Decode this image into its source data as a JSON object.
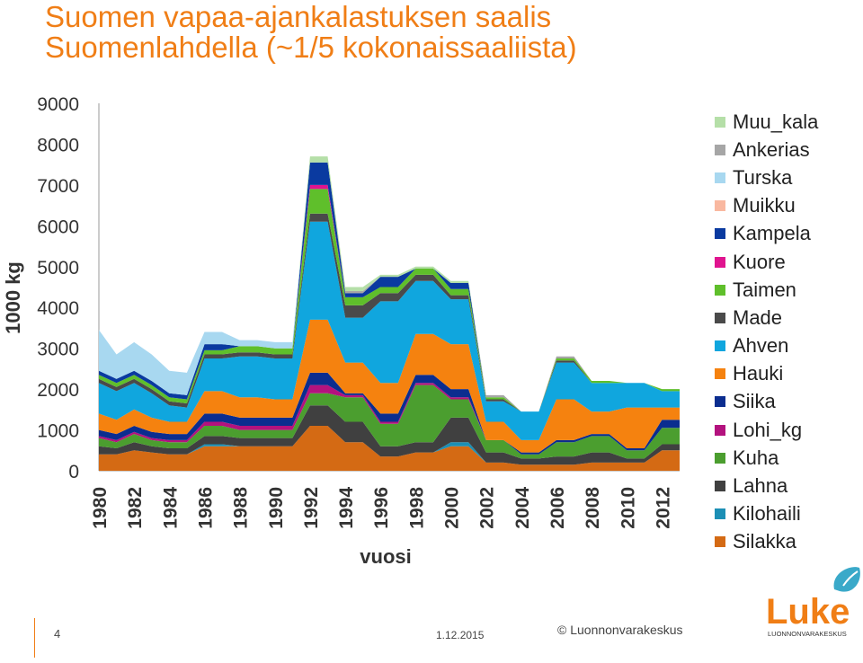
{
  "title": {
    "line1": "Suomen vapaa-ajankalastuksen saalis",
    "line2": "Suomenlahdella (~1/5 kokonaissaaliista)"
  },
  "footer": {
    "page_number": "4",
    "date": "1.12.2015",
    "copyright": "© Luonnonvarakeskus",
    "logo_text": "Luke",
    "logo_subtext": "LUONNONVARAKESKUS"
  },
  "chart_data": {
    "type": "area",
    "stacked": true,
    "title": "",
    "xlabel": "vuosi",
    "ylabel": "1000 kg",
    "ylim": [
      0,
      9000
    ],
    "yticks": [
      0,
      1000,
      2000,
      3000,
      4000,
      5000,
      6000,
      7000,
      8000,
      9000
    ],
    "xticks": [
      "1980",
      "1982",
      "1984",
      "1986",
      "1988",
      "1990",
      "1992",
      "1994",
      "1996",
      "1998",
      "2000",
      "2002",
      "2004",
      "2006",
      "2008",
      "2010",
      "2012"
    ],
    "grid": false,
    "legend_position": "right",
    "x": [
      1980,
      1981,
      1982,
      1983,
      1984,
      1985,
      1986,
      1987,
      1988,
      1989,
      1990,
      1991,
      1992,
      1993,
      1994,
      1995,
      1996,
      1997,
      1998,
      1999,
      2000,
      2001,
      2002,
      2003,
      2004,
      2005,
      2006,
      2007,
      2008,
      2009,
      2010,
      2011,
      2012,
      2013
    ],
    "series": [
      {
        "name": "Silakka",
        "color": "#d46a14",
        "values": [
          400,
          400,
          500,
          450,
          400,
          400,
          600,
          600,
          600,
          600,
          600,
          600,
          1100,
          1100,
          700,
          700,
          350,
          350,
          450,
          450,
          600,
          600,
          200,
          200,
          150,
          150,
          150,
          150,
          200,
          200,
          200,
          200,
          500,
          500
        ]
      },
      {
        "name": "Kilohaili",
        "color": "#1c8fb5",
        "values": [
          0,
          0,
          0,
          0,
          0,
          0,
          50,
          50,
          0,
          0,
          0,
          0,
          0,
          0,
          0,
          0,
          0,
          0,
          0,
          0,
          100,
          100,
          0,
          0,
          0,
          0,
          0,
          0,
          0,
          0,
          0,
          0,
          0,
          0
        ]
      },
      {
        "name": "Lahna",
        "color": "#404040",
        "values": [
          200,
          150,
          200,
          150,
          150,
          150,
          200,
          200,
          200,
          200,
          200,
          200,
          500,
          500,
          500,
          500,
          250,
          250,
          250,
          250,
          600,
          600,
          250,
          250,
          150,
          150,
          200,
          200,
          250,
          250,
          100,
          100,
          150,
          150
        ]
      },
      {
        "name": "Kuha",
        "color": "#4b9e2f",
        "values": [
          200,
          150,
          200,
          150,
          150,
          150,
          250,
          250,
          200,
          200,
          200,
          200,
          300,
          300,
          600,
          600,
          550,
          550,
          1400,
          1400,
          450,
          450,
          300,
          300,
          100,
          100,
          350,
          350,
          400,
          400,
          200,
          200,
          400,
          400
        ]
      },
      {
        "name": "Lohi_kg",
        "color": "#b3127e",
        "values": [
          50,
          50,
          50,
          50,
          50,
          50,
          100,
          100,
          100,
          100,
          100,
          100,
          200,
          200,
          50,
          50,
          50,
          50,
          50,
          50,
          50,
          50,
          0,
          0,
          0,
          0,
          0,
          0,
          0,
          0,
          0,
          0,
          0,
          0
        ]
      },
      {
        "name": "Siika",
        "color": "#0b2d8f",
        "values": [
          150,
          150,
          150,
          150,
          150,
          150,
          200,
          200,
          200,
          200,
          200,
          200,
          300,
          300,
          50,
          50,
          200,
          200,
          200,
          200,
          200,
          200,
          0,
          0,
          50,
          50,
          50,
          50,
          50,
          50,
          50,
          50,
          200,
          200
        ]
      },
      {
        "name": "Hauki",
        "color": "#f5820f",
        "values": [
          400,
          350,
          400,
          350,
          300,
          300,
          550,
          550,
          500,
          500,
          450,
          450,
          1300,
          1300,
          750,
          750,
          750,
          750,
          1000,
          1000,
          1100,
          1100,
          450,
          450,
          300,
          300,
          1000,
          1000,
          550,
          550,
          1000,
          1000,
          300,
          300
        ]
      },
      {
        "name": "Ahven",
        "color": "#10a6de",
        "values": [
          750,
          700,
          650,
          600,
          400,
          350,
          800,
          800,
          1000,
          1000,
          1000,
          1000,
          2400,
          2400,
          1100,
          1100,
          2000,
          2000,
          1300,
          1300,
          1100,
          1100,
          500,
          500,
          700,
          700,
          900,
          900,
          700,
          700,
          600,
          600,
          400,
          400
        ]
      },
      {
        "name": "Made",
        "color": "#4a4a4a",
        "values": [
          100,
          100,
          100,
          100,
          100,
          100,
          100,
          100,
          100,
          100,
          100,
          100,
          200,
          200,
          300,
          300,
          200,
          200,
          150,
          150,
          100,
          100,
          50,
          50,
          0,
          0,
          50,
          50,
          0,
          0,
          0,
          0,
          0,
          0
        ]
      },
      {
        "name": "Taimen",
        "color": "#5fbf2b",
        "values": [
          100,
          100,
          100,
          100,
          100,
          100,
          100,
          100,
          150,
          150,
          150,
          150,
          600,
          600,
          200,
          200,
          150,
          150,
          150,
          150,
          150,
          150,
          50,
          50,
          0,
          0,
          50,
          50,
          50,
          50,
          0,
          0,
          50,
          50
        ]
      },
      {
        "name": "Kuore",
        "color": "#e0148f",
        "values": [
          0,
          0,
          0,
          0,
          0,
          0,
          0,
          0,
          0,
          0,
          0,
          0,
          100,
          100,
          0,
          0,
          0,
          0,
          0,
          0,
          0,
          0,
          0,
          0,
          0,
          0,
          0,
          0,
          0,
          0,
          0,
          0,
          0,
          0
        ]
      },
      {
        "name": "Kampela",
        "color": "#0a3aa0",
        "values": [
          100,
          100,
          100,
          100,
          100,
          100,
          150,
          150,
          0,
          0,
          0,
          0,
          550,
          550,
          100,
          100,
          250,
          250,
          0,
          0,
          150,
          150,
          0,
          0,
          0,
          0,
          0,
          0,
          0,
          0,
          0,
          0,
          0,
          0
        ]
      },
      {
        "name": "Muikku",
        "color": "#f9b8a0",
        "values": [
          0,
          0,
          0,
          0,
          0,
          0,
          0,
          0,
          0,
          0,
          0,
          0,
          0,
          0,
          0,
          0,
          0,
          0,
          0,
          0,
          0,
          0,
          0,
          0,
          0,
          0,
          0,
          0,
          0,
          0,
          0,
          0,
          0,
          0
        ]
      },
      {
        "name": "Turska",
        "color": "#a8d8f0",
        "values": [
          1000,
          600,
          700,
          650,
          550,
          550,
          300,
          300,
          150,
          150,
          150,
          150,
          0,
          0,
          0,
          0,
          0,
          0,
          0,
          0,
          0,
          0,
          0,
          0,
          0,
          0,
          0,
          0,
          0,
          0,
          0,
          0,
          0,
          0
        ]
      },
      {
        "name": "Ankerias",
        "color": "#a6a6a6",
        "values": [
          0,
          0,
          0,
          0,
          0,
          0,
          0,
          0,
          0,
          0,
          0,
          0,
          0,
          0,
          50,
          50,
          0,
          0,
          0,
          0,
          0,
          0,
          50,
          50,
          0,
          0,
          50,
          50,
          0,
          0,
          0,
          0,
          0,
          0
        ]
      },
      {
        "name": "Muu_kala",
        "color": "#b5dfa8",
        "values": [
          0,
          0,
          0,
          0,
          0,
          0,
          0,
          0,
          0,
          0,
          0,
          0,
          150,
          150,
          100,
          100,
          50,
          50,
          50,
          50,
          50,
          50,
          0,
          0,
          0,
          0,
          0,
          0,
          0,
          0,
          0,
          0,
          0,
          0
        ]
      }
    ]
  }
}
